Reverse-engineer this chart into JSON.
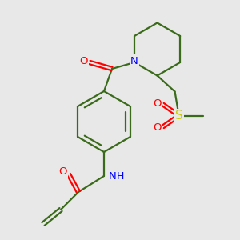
{
  "background_color": "#e8e8e8",
  "bond_color": "#3a6b1a",
  "atom_colors": {
    "N": "#0000ff",
    "O": "#ff0000",
    "S": "#cccc00",
    "C": "#3a6b1a",
    "H": "#0000ff"
  },
  "figsize": [
    3.0,
    3.0
  ],
  "dpi": 100
}
